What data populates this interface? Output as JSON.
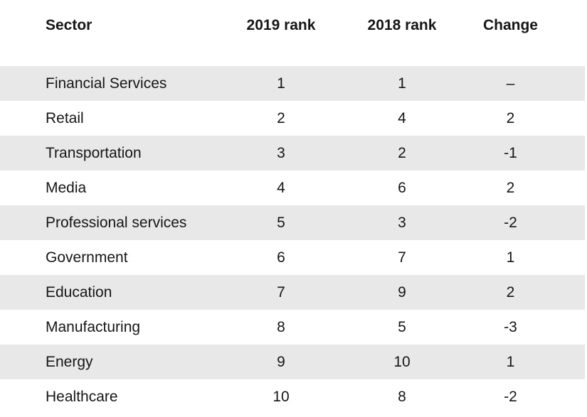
{
  "table": {
    "headers": {
      "sector": "Sector",
      "rank_2019": "2019 rank",
      "rank_2018": "2018 rank",
      "change": "Change"
    },
    "rows": [
      {
        "sector": "Financial Services",
        "rank_2019": "1",
        "rank_2018": "1",
        "change": "–"
      },
      {
        "sector": "Retail",
        "rank_2019": "2",
        "rank_2018": "4",
        "change": "2"
      },
      {
        "sector": "Transportation",
        "rank_2019": "3",
        "rank_2018": "2",
        "change": "-1"
      },
      {
        "sector": "Media",
        "rank_2019": "4",
        "rank_2018": "6",
        "change": "2"
      },
      {
        "sector": "Professional services",
        "rank_2019": "5",
        "rank_2018": "3",
        "change": "-2"
      },
      {
        "sector": "Government",
        "rank_2019": "6",
        "rank_2018": "7",
        "change": "1"
      },
      {
        "sector": "Education",
        "rank_2019": "7",
        "rank_2018": "9",
        "change": "2"
      },
      {
        "sector": "Manufacturing",
        "rank_2019": "8",
        "rank_2018": "5",
        "change": "-3"
      },
      {
        "sector": "Energy",
        "rank_2019": "9",
        "rank_2018": "10",
        "change": "1"
      },
      {
        "sector": "Healthcare",
        "rank_2019": "10",
        "rank_2018": "8",
        "change": "-2"
      }
    ]
  },
  "colors": {
    "stripe": "#e8e8e8",
    "text": "#161616",
    "background": "#ffffff"
  }
}
